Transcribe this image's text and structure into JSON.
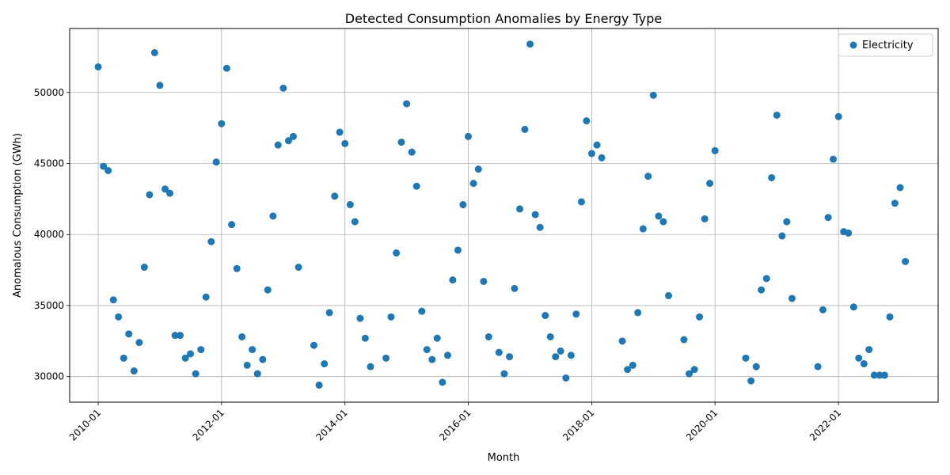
{
  "chart_data": {
    "type": "scatter",
    "title": "Detected Consumption Anomalies by Energy Type",
    "xlabel": "Month",
    "ylabel": "Anomalous Consumption (GWh)",
    "x_axis_type": "date",
    "xlim": [
      "2009-07-16",
      "2023-08-14"
    ],
    "ylim": [
      28200,
      54500
    ],
    "x_ticks": [
      "2010-01",
      "2012-01",
      "2014-01",
      "2016-01",
      "2018-01",
      "2020-01",
      "2022-01"
    ],
    "y_ticks": [
      30000,
      35000,
      40000,
      45000,
      50000
    ],
    "grid": true,
    "legend_position": "top-right",
    "series": [
      {
        "name": "Electricity",
        "color": "#1f77b4",
        "points": [
          [
            "2010-01",
            51800
          ],
          [
            "2010-02",
            44800
          ],
          [
            "2010-03",
            44500
          ],
          [
            "2010-04",
            35400
          ],
          [
            "2010-05",
            34200
          ],
          [
            "2010-06",
            31300
          ],
          [
            "2010-07",
            33000
          ],
          [
            "2010-08",
            30400
          ],
          [
            "2010-09",
            32400
          ],
          [
            "2010-10",
            37700
          ],
          [
            "2010-11",
            42800
          ],
          [
            "2010-12",
            52800
          ],
          [
            "2011-01",
            50500
          ],
          [
            "2011-02",
            43200
          ],
          [
            "2011-03",
            42900
          ],
          [
            "2011-04",
            32900
          ],
          [
            "2011-05",
            32900
          ],
          [
            "2011-06",
            31300
          ],
          [
            "2011-07",
            31600
          ],
          [
            "2011-08",
            30200
          ],
          [
            "2011-09",
            31900
          ],
          [
            "2011-10",
            35600
          ],
          [
            "2011-11",
            39500
          ],
          [
            "2011-12",
            45100
          ],
          [
            "2012-01",
            47800
          ],
          [
            "2012-02",
            51700
          ],
          [
            "2012-03",
            40700
          ],
          [
            "2012-04",
            37600
          ],
          [
            "2012-05",
            32800
          ],
          [
            "2012-06",
            30800
          ],
          [
            "2012-07",
            31900
          ],
          [
            "2012-08",
            30200
          ],
          [
            "2012-09",
            31200
          ],
          [
            "2012-10",
            36100
          ],
          [
            "2012-11",
            41300
          ],
          [
            "2012-12",
            46300
          ],
          [
            "2013-01",
            50300
          ],
          [
            "2013-02",
            46600
          ],
          [
            "2013-03",
            46900
          ],
          [
            "2013-04",
            37700
          ],
          [
            "2013-07",
            32200
          ],
          [
            "2013-08",
            29400
          ],
          [
            "2013-09",
            30900
          ],
          [
            "2013-10",
            34500
          ],
          [
            "2013-11",
            42700
          ],
          [
            "2013-12",
            47200
          ],
          [
            "2014-01",
            46400
          ],
          [
            "2014-02",
            42100
          ],
          [
            "2014-03",
            40900
          ],
          [
            "2014-04",
            34100
          ],
          [
            "2014-05",
            32700
          ],
          [
            "2014-06",
            30700
          ],
          [
            "2014-09",
            31300
          ],
          [
            "2014-10",
            34200
          ],
          [
            "2014-11",
            38700
          ],
          [
            "2014-12",
            46500
          ],
          [
            "2015-01",
            49200
          ],
          [
            "2015-02",
            45800
          ],
          [
            "2015-03",
            43400
          ],
          [
            "2015-04",
            34600
          ],
          [
            "2015-05",
            31900
          ],
          [
            "2015-06",
            31200
          ],
          [
            "2015-07",
            32700
          ],
          [
            "2015-08",
            29600
          ],
          [
            "2015-09",
            31500
          ],
          [
            "2015-10",
            36800
          ],
          [
            "2015-11",
            38900
          ],
          [
            "2015-12",
            42100
          ],
          [
            "2016-01",
            46900
          ],
          [
            "2016-02",
            43600
          ],
          [
            "2016-03",
            44600
          ],
          [
            "2016-04",
            36700
          ],
          [
            "2016-05",
            32800
          ],
          [
            "2016-07",
            31700
          ],
          [
            "2016-08",
            30200
          ],
          [
            "2016-09",
            31400
          ],
          [
            "2016-10",
            36200
          ],
          [
            "2016-11",
            41800
          ],
          [
            "2016-12",
            47400
          ],
          [
            "2017-01",
            53400
          ],
          [
            "2017-02",
            41400
          ],
          [
            "2017-03",
            40500
          ],
          [
            "2017-04",
            34300
          ],
          [
            "2017-05",
            32800
          ],
          [
            "2017-06",
            31400
          ],
          [
            "2017-07",
            31800
          ],
          [
            "2017-08",
            29900
          ],
          [
            "2017-09",
            31500
          ],
          [
            "2017-10",
            34400
          ],
          [
            "2017-11",
            42300
          ],
          [
            "2017-12",
            48000
          ],
          [
            "2018-01",
            45700
          ],
          [
            "2018-02",
            46300
          ],
          [
            "2018-03",
            45400
          ],
          [
            "2018-07",
            32500
          ],
          [
            "2018-08",
            30500
          ],
          [
            "2018-09",
            30800
          ],
          [
            "2018-10",
            34500
          ],
          [
            "2018-11",
            40400
          ],
          [
            "2018-12",
            44100
          ],
          [
            "2019-01",
            49800
          ],
          [
            "2019-02",
            41300
          ],
          [
            "2019-03",
            40900
          ],
          [
            "2019-04",
            35700
          ],
          [
            "2019-07",
            32600
          ],
          [
            "2019-08",
            30200
          ],
          [
            "2019-09",
            30500
          ],
          [
            "2019-10",
            34200
          ],
          [
            "2019-11",
            41100
          ],
          [
            "2019-12",
            43600
          ],
          [
            "2020-01",
            45900
          ],
          [
            "2020-07",
            31300
          ],
          [
            "2020-08",
            29700
          ],
          [
            "2020-09",
            30700
          ],
          [
            "2020-10",
            36100
          ],
          [
            "2020-11",
            36900
          ],
          [
            "2020-12",
            44000
          ],
          [
            "2021-01",
            48400
          ],
          [
            "2021-02",
            39900
          ],
          [
            "2021-03",
            40900
          ],
          [
            "2021-04",
            35500
          ],
          [
            "2021-09",
            30700
          ],
          [
            "2021-10",
            34700
          ],
          [
            "2021-11",
            41200
          ],
          [
            "2021-12",
            45300
          ],
          [
            "2022-01",
            48300
          ],
          [
            "2022-02",
            40200
          ],
          [
            "2022-03",
            40100
          ],
          [
            "2022-04",
            34900
          ],
          [
            "2022-05",
            31300
          ],
          [
            "2022-06",
            30900
          ],
          [
            "2022-07",
            31900
          ],
          [
            "2022-08",
            30100
          ],
          [
            "2022-09",
            30100
          ],
          [
            "2022-10",
            30100
          ],
          [
            "2022-11",
            34200
          ],
          [
            "2022-12",
            42200
          ],
          [
            "2023-01",
            43300
          ],
          [
            "2023-02",
            38100
          ]
        ]
      }
    ]
  }
}
